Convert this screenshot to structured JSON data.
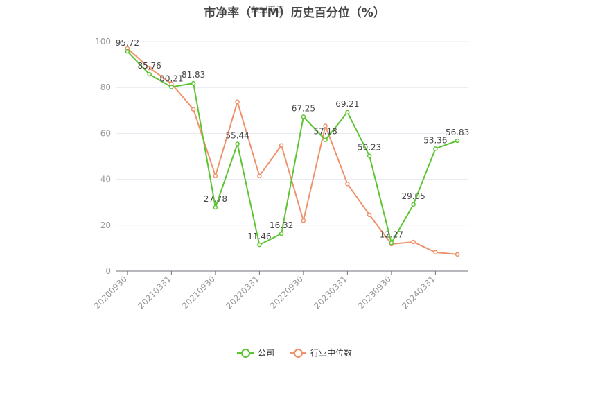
{
  "chart_data": {
    "type": "line",
    "title": "市净率（TTM）历史百分位（%）",
    "watermark": "数据来源",
    "categories": [
      "20200930",
      "20201231",
      "20210331",
      "20210630",
      "20210930",
      "20211231",
      "20220331",
      "20220630",
      "20220930",
      "20221231",
      "20230331",
      "20230630",
      "20230930",
      "20231231",
      "20240331",
      "20240630"
    ],
    "tick_labels": [
      "20200930",
      "20210331",
      "20210930",
      "20220331",
      "20220930",
      "20230331",
      "20230930",
      "20240331"
    ],
    "ylim": [
      0,
      100
    ],
    "yticks": [
      0,
      20,
      40,
      60,
      80,
      100
    ],
    "grid": true,
    "legend_position": "bottom-center",
    "series": [
      {
        "name": "公司",
        "color": "#5dc432",
        "values": [
          95.72,
          85.76,
          80.21,
          81.83,
          27.78,
          55.44,
          11.46,
          16.32,
          67.25,
          57.18,
          69.21,
          50.23,
          12.27,
          29.05,
          53.36,
          56.83
        ],
        "labels": [
          "95.72",
          "85.76",
          "80.21",
          "81.83",
          "27.78",
          "55.44",
          "11.46",
          "16.32",
          "67.25",
          "57.18",
          "69.21",
          "50.23",
          "12.27",
          "29.05",
          "53.36",
          "56.83"
        ]
      },
      {
        "name": "行业中位数",
        "color": "#f0916b",
        "values": [
          97.0,
          88.5,
          81.7,
          70.5,
          41.5,
          73.8,
          41.5,
          54.8,
          22.0,
          63.3,
          38.0,
          24.5,
          11.8,
          12.7,
          8.2,
          7.3
        ]
      }
    ]
  }
}
